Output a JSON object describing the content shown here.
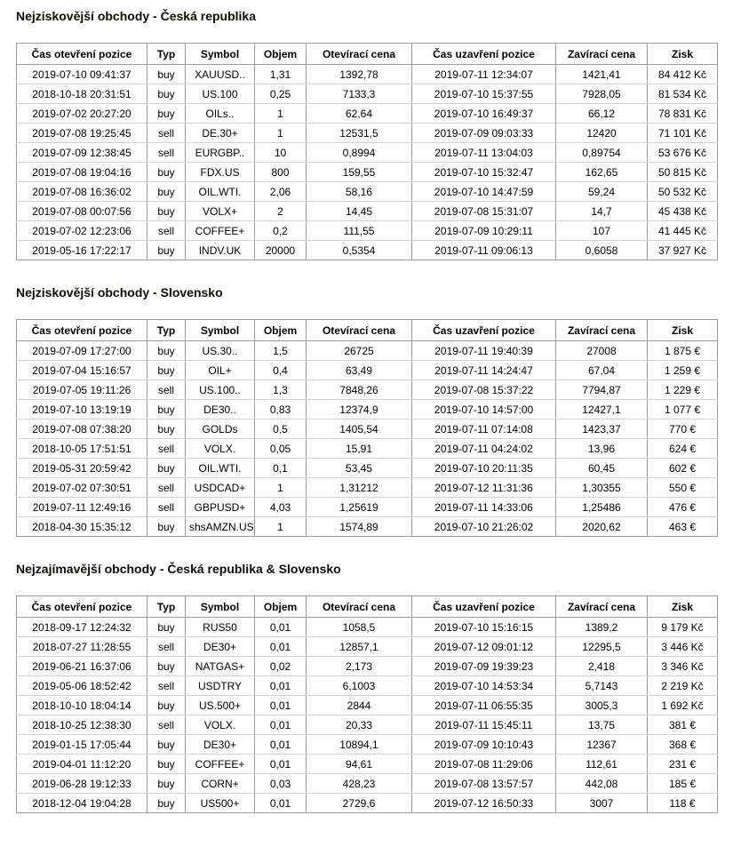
{
  "page": {
    "background": "#ffffff",
    "text_color": "#000000",
    "table_border_color": "#9c9c9c",
    "row_divider_color": "#d2d2d2"
  },
  "columns": [
    "Čas otevření pozice",
    "Typ",
    "Symbol",
    "Objem",
    "Otevírací cena",
    "Čas uzavření pozice",
    "Zavírací cena",
    "Zisk"
  ],
  "tables": [
    {
      "title": "Nejziskovější obchody - Česká republika",
      "rows": [
        [
          "2019-07-10 09:41:37",
          "buy",
          "XAUUSD..",
          "1,31",
          "1392,78",
          "2019-07-11 12:34:07",
          "1421,41",
          "84 412 Kč"
        ],
        [
          "2018-10-18 20:31:51",
          "buy",
          "US.100",
          "0,25",
          "7133,3",
          "2019-07-10 15:37:55",
          "7928,05",
          "81 534 Kč"
        ],
        [
          "2019-07-02 20:27:20",
          "buy",
          "OILs..",
          "1",
          "62,64",
          "2019-07-10 16:49:37",
          "66,12",
          "78 831 Kč"
        ],
        [
          "2019-07-08 19:25:45",
          "sell",
          "DE.30+",
          "1",
          "12531,5",
          "2019-07-09 09:03:33",
          "12420",
          "71 101 Kč"
        ],
        [
          "2019-07-09 12:38:45",
          "sell",
          "EURGBP..",
          "10",
          "0,8994",
          "2019-07-11 13:04:03",
          "0,89754",
          "53 676 Kč"
        ],
        [
          "2019-07-08 19:04:16",
          "buy",
          "FDX.US",
          "800",
          "159,55",
          "2019-07-10 15:32:47",
          "162,65",
          "50 815 Kč"
        ],
        [
          "2019-07-08 16:36:02",
          "buy",
          "OIL.WTI.",
          "2,06",
          "58,16",
          "2019-07-10 14:47:59",
          "59,24",
          "50 532 Kč"
        ],
        [
          "2019-07-08 00:07:56",
          "buy",
          "VOLX+",
          "2",
          "14,45",
          "2019-07-08 15:31:07",
          "14,7",
          "45 438 Kč"
        ],
        [
          "2019-07-02 12:23:06",
          "sell",
          "COFFEE+",
          "0,2",
          "111,55",
          "2019-07-09 10:29:11",
          "107",
          "41 445 Kč"
        ],
        [
          "2019-05-16 17:22:17",
          "buy",
          "INDV.UK",
          "20000",
          "0,5354",
          "2019-07-11 09:06:13",
          "0,6058",
          "37 927 Kč"
        ]
      ]
    },
    {
      "title": "Nejziskovější obchody - Slovensko",
      "rows": [
        [
          "2019-07-09 17:27:00",
          "buy",
          "US.30..",
          "1,5",
          "26725",
          "2019-07-11 19:40:39",
          "27008",
          "1 875 €"
        ],
        [
          "2019-07-04 15:16:57",
          "buy",
          "OIL+",
          "0,4",
          "63,49",
          "2019-07-11 14:24:47",
          "67,04",
          "1 259 €"
        ],
        [
          "2019-07-05 19:11:26",
          "sell",
          "US.100..",
          "1,3",
          "7848,26",
          "2019-07-08 15:37:22",
          "7794,87",
          "1 229 €"
        ],
        [
          "2019-07-10 13:19:19",
          "buy",
          "DE30..",
          "0,83",
          "12374,9",
          "2019-07-10 14:57:00",
          "12427,1",
          "1 077 €"
        ],
        [
          "2019-07-08 07:38:20",
          "buy",
          "GOLDs",
          "0,5",
          "1405,54",
          "2019-07-11 07:14:08",
          "1423,37",
          "770 €"
        ],
        [
          "2018-10-05 17:51:51",
          "sell",
          "VOLX.",
          "0,05",
          "15,91",
          "2019-07-11 04:24:02",
          "13,96",
          "624 €"
        ],
        [
          "2019-05-31 20:59:42",
          "buy",
          "OIL.WTI.",
          "0,1",
          "53,45",
          "2019-07-10 20:11:35",
          "60,45",
          "602 €"
        ],
        [
          "2019-07-02 07:30:51",
          "sell",
          "USDCAD+",
          "1",
          "1,31212",
          "2019-07-12 11:31:36",
          "1,30355",
          "550 €"
        ],
        [
          "2019-07-11 12:49:16",
          "sell",
          "GBPUSD+",
          "4,03",
          "1,25619",
          "2019-07-11 14:33:06",
          "1,25486",
          "476 €"
        ],
        [
          "2018-04-30 15:35:12",
          "buy",
          "shsAMZN.US",
          "1",
          "1574,89",
          "2019-07-10 21:26:02",
          "2020,62",
          "463 €"
        ]
      ]
    },
    {
      "title": "Nejzajímavější obchody - Česká republika & Slovensko",
      "rows": [
        [
          "2018-09-17 12:24:32",
          "buy",
          "RUS50",
          "0,01",
          "1058,5",
          "2019-07-10 15:16:15",
          "1389,2",
          "9 179 Kč"
        ],
        [
          "2018-07-27 11:28:55",
          "sell",
          "DE30+",
          "0,01",
          "12857,1",
          "2019-07-12 09:01:12",
          "12295,5",
          "3 446 Kč"
        ],
        [
          "2019-06-21 16:37:06",
          "buy",
          "NATGAS+",
          "0,02",
          "2,173",
          "2019-07-09 19:39:23",
          "2,418",
          "3 346 Kč"
        ],
        [
          "2019-05-06 18:52:42",
          "sell",
          "USDTRY",
          "0,01",
          "6,1003",
          "2019-07-10 14:53:34",
          "5,7143",
          "2 219 Kč"
        ],
        [
          "2018-10-10 18:04:14",
          "buy",
          "US.500+",
          "0,01",
          "2844",
          "2019-07-11 06:55:35",
          "3005,3",
          "1 692 Kč"
        ],
        [
          "2018-10-25 12:38:30",
          "sell",
          "VOLX.",
          "0,01",
          "20,33",
          "2019-07-11 15:45:11",
          "13,75",
          "381 €"
        ],
        [
          "2019-01-15 17:05:44",
          "buy",
          "DE30+",
          "0,01",
          "10894,1",
          "2019-07-09 10:10:43",
          "12367",
          "368 €"
        ],
        [
          "2019-04-01 11:12:20",
          "buy",
          "COFFEE+",
          "0,01",
          "94,61",
          "2019-07-08 11:29:06",
          "112,61",
          "231 €"
        ],
        [
          "2019-06-28 19:12:33",
          "buy",
          "CORN+",
          "0,03",
          "428,23",
          "2019-07-08 13:57:57",
          "442,08",
          "185 €"
        ],
        [
          "2018-12-04 19:04:28",
          "buy",
          "US500+",
          "0,01",
          "2729,6",
          "2019-07-12 16:50:33",
          "3007",
          "118 €"
        ]
      ]
    }
  ]
}
